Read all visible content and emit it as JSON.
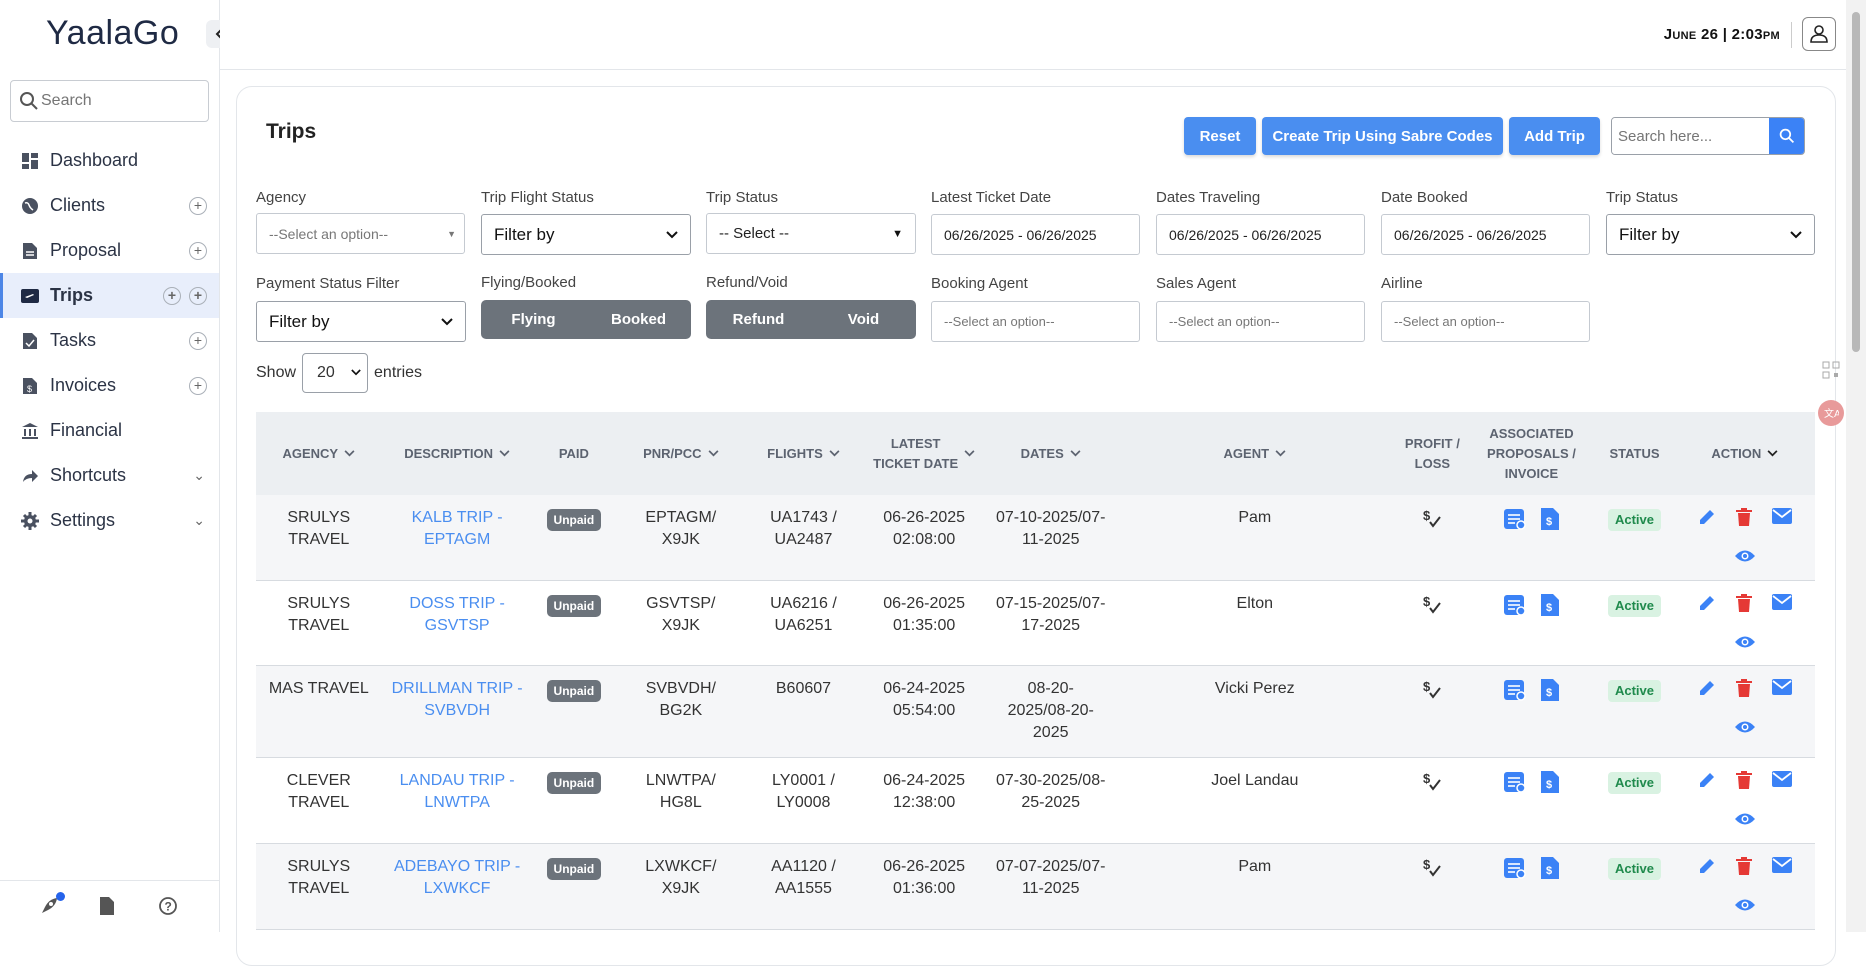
{
  "app": {
    "logo": "YaalaGo",
    "datetime": "June 26 | 2:03pm"
  },
  "sidebar": {
    "search_placeholder": "Search",
    "items": [
      {
        "label": "Dashboard"
      },
      {
        "label": "Clients"
      },
      {
        "label": "Proposal"
      },
      {
        "label": "Trips"
      },
      {
        "label": "Tasks"
      },
      {
        "label": "Invoices"
      },
      {
        "label": "Financial"
      },
      {
        "label": "Shortcuts"
      },
      {
        "label": "Settings"
      }
    ]
  },
  "page": {
    "title": "Trips",
    "buttons": {
      "reset": "Reset",
      "create_sabre": "Create Trip Using Sabre Codes",
      "add_trip": "Add Trip"
    },
    "search_placeholder": "Search here..."
  },
  "filters": {
    "agency": {
      "label": "Agency",
      "value": "--Select an option--"
    },
    "trip_flight_status": {
      "label": "Trip Flight Status",
      "value": "Filter by"
    },
    "trip_status": {
      "label": "Trip Status",
      "value": "-- Select --"
    },
    "latest_ticket_date": {
      "label": "Latest Ticket Date",
      "value": "06/26/2025 - 06/26/2025"
    },
    "dates_traveling": {
      "label": "Dates Traveling",
      "value": "06/26/2025 - 06/26/2025"
    },
    "date_booked": {
      "label": "Date Booked",
      "value": "06/26/2025 - 06/26/2025"
    },
    "trip_status_2": {
      "label": "Trip Status",
      "value": "Filter by"
    },
    "payment_status": {
      "label": "Payment Status Filter",
      "value": "Filter by"
    },
    "flying_booked": {
      "label": "Flying/Booked",
      "options": [
        "Flying",
        "Booked"
      ]
    },
    "refund_void": {
      "label": "Refund/Void",
      "options": [
        "Refund",
        "Void"
      ]
    },
    "booking_agent": {
      "label": "Booking Agent",
      "value": "--Select an option--"
    },
    "sales_agent": {
      "label": "Sales Agent",
      "value": "--Select an option--"
    },
    "airline": {
      "label": "Airline",
      "value": "--Select an option--"
    }
  },
  "entries": {
    "show": "Show",
    "value": "20",
    "suffix": "entries"
  },
  "table": {
    "headers": {
      "agency": "Agency",
      "description": "Description",
      "paid": "Paid",
      "pnr": "PNR/PCC",
      "flights": "Flights",
      "latest_ticket_date_1": "Latest",
      "latest_ticket_date_2": "Ticket Date",
      "dates": "Dates",
      "agent": "Agent",
      "profit_1": "Profit /",
      "profit_2": "Loss",
      "assoc_1": "Associated",
      "assoc_2": "Proposals /",
      "assoc_3": "Invoice",
      "status": "Status",
      "action": "Action"
    },
    "rows": [
      {
        "agency": [
          "SRULYS",
          "TRAVEL"
        ],
        "description": [
          "KALB TRIP -",
          "EPTAGM"
        ],
        "paid": "Unpaid",
        "pnr": [
          "EPTAGM/",
          "X9JK"
        ],
        "flights": [
          "UA1743 /",
          "UA2487"
        ],
        "latest": [
          "06-26-2025",
          "02:08:00"
        ],
        "dates": [
          "07-10-2025/07-",
          "11-2025"
        ],
        "agent": "Pam",
        "status": "Active"
      },
      {
        "agency": [
          "SRULYS",
          "TRAVEL"
        ],
        "description": [
          "DOSS TRIP -",
          "GSVTSP"
        ],
        "paid": "Unpaid",
        "pnr": [
          "GSVTSP/",
          "X9JK"
        ],
        "flights": [
          "UA6216 /",
          "UA6251"
        ],
        "latest": [
          "06-26-2025",
          "01:35:00"
        ],
        "dates": [
          "07-15-2025/07-",
          "17-2025"
        ],
        "agent": "Elton",
        "status": "Active"
      },
      {
        "agency": [
          "MAS TRAVEL"
        ],
        "description": [
          "DRILLMAN TRIP -",
          "SVBVDH"
        ],
        "paid": "Unpaid",
        "pnr": [
          "SVBVDH/",
          "BG2K"
        ],
        "flights": [
          "B60607"
        ],
        "latest": [
          "06-24-2025",
          "05:54:00"
        ],
        "dates": [
          "08-20-",
          "2025/08-20-",
          "2025"
        ],
        "agent": "Vicki Perez",
        "status": "Active"
      },
      {
        "agency": [
          "CLEVER",
          "TRAVEL"
        ],
        "description": [
          "LANDAU TRIP -",
          "LNWTPA"
        ],
        "paid": "Unpaid",
        "pnr": [
          "LNWTPA/",
          "HG8L"
        ],
        "flights": [
          "LY0001 /",
          "LY0008"
        ],
        "latest": [
          "06-24-2025",
          "12:38:00"
        ],
        "dates": [
          "07-30-2025/08-",
          "25-2025"
        ],
        "agent": "Joel Landau",
        "status": "Active"
      },
      {
        "agency": [
          "SRULYS",
          "TRAVEL"
        ],
        "description": [
          "ADEBAYO TRIP -",
          "LXWKCF"
        ],
        "paid": "Unpaid",
        "pnr": [
          "LXWKCF/",
          "X9JK"
        ],
        "flights": [
          "AA1120 /",
          "AA1555"
        ],
        "latest": [
          "06-26-2025",
          "01:36:00"
        ],
        "dates": [
          "07-07-2025/07-",
          "11-2025"
        ],
        "agent": "Pam",
        "status": "Active"
      }
    ]
  },
  "colors": {
    "primary": "#4a8ef0",
    "danger": "#e53935",
    "active_bg": "#d9f2e2",
    "active_text": "#1f8a4c",
    "unpaid": "#6c737b"
  }
}
